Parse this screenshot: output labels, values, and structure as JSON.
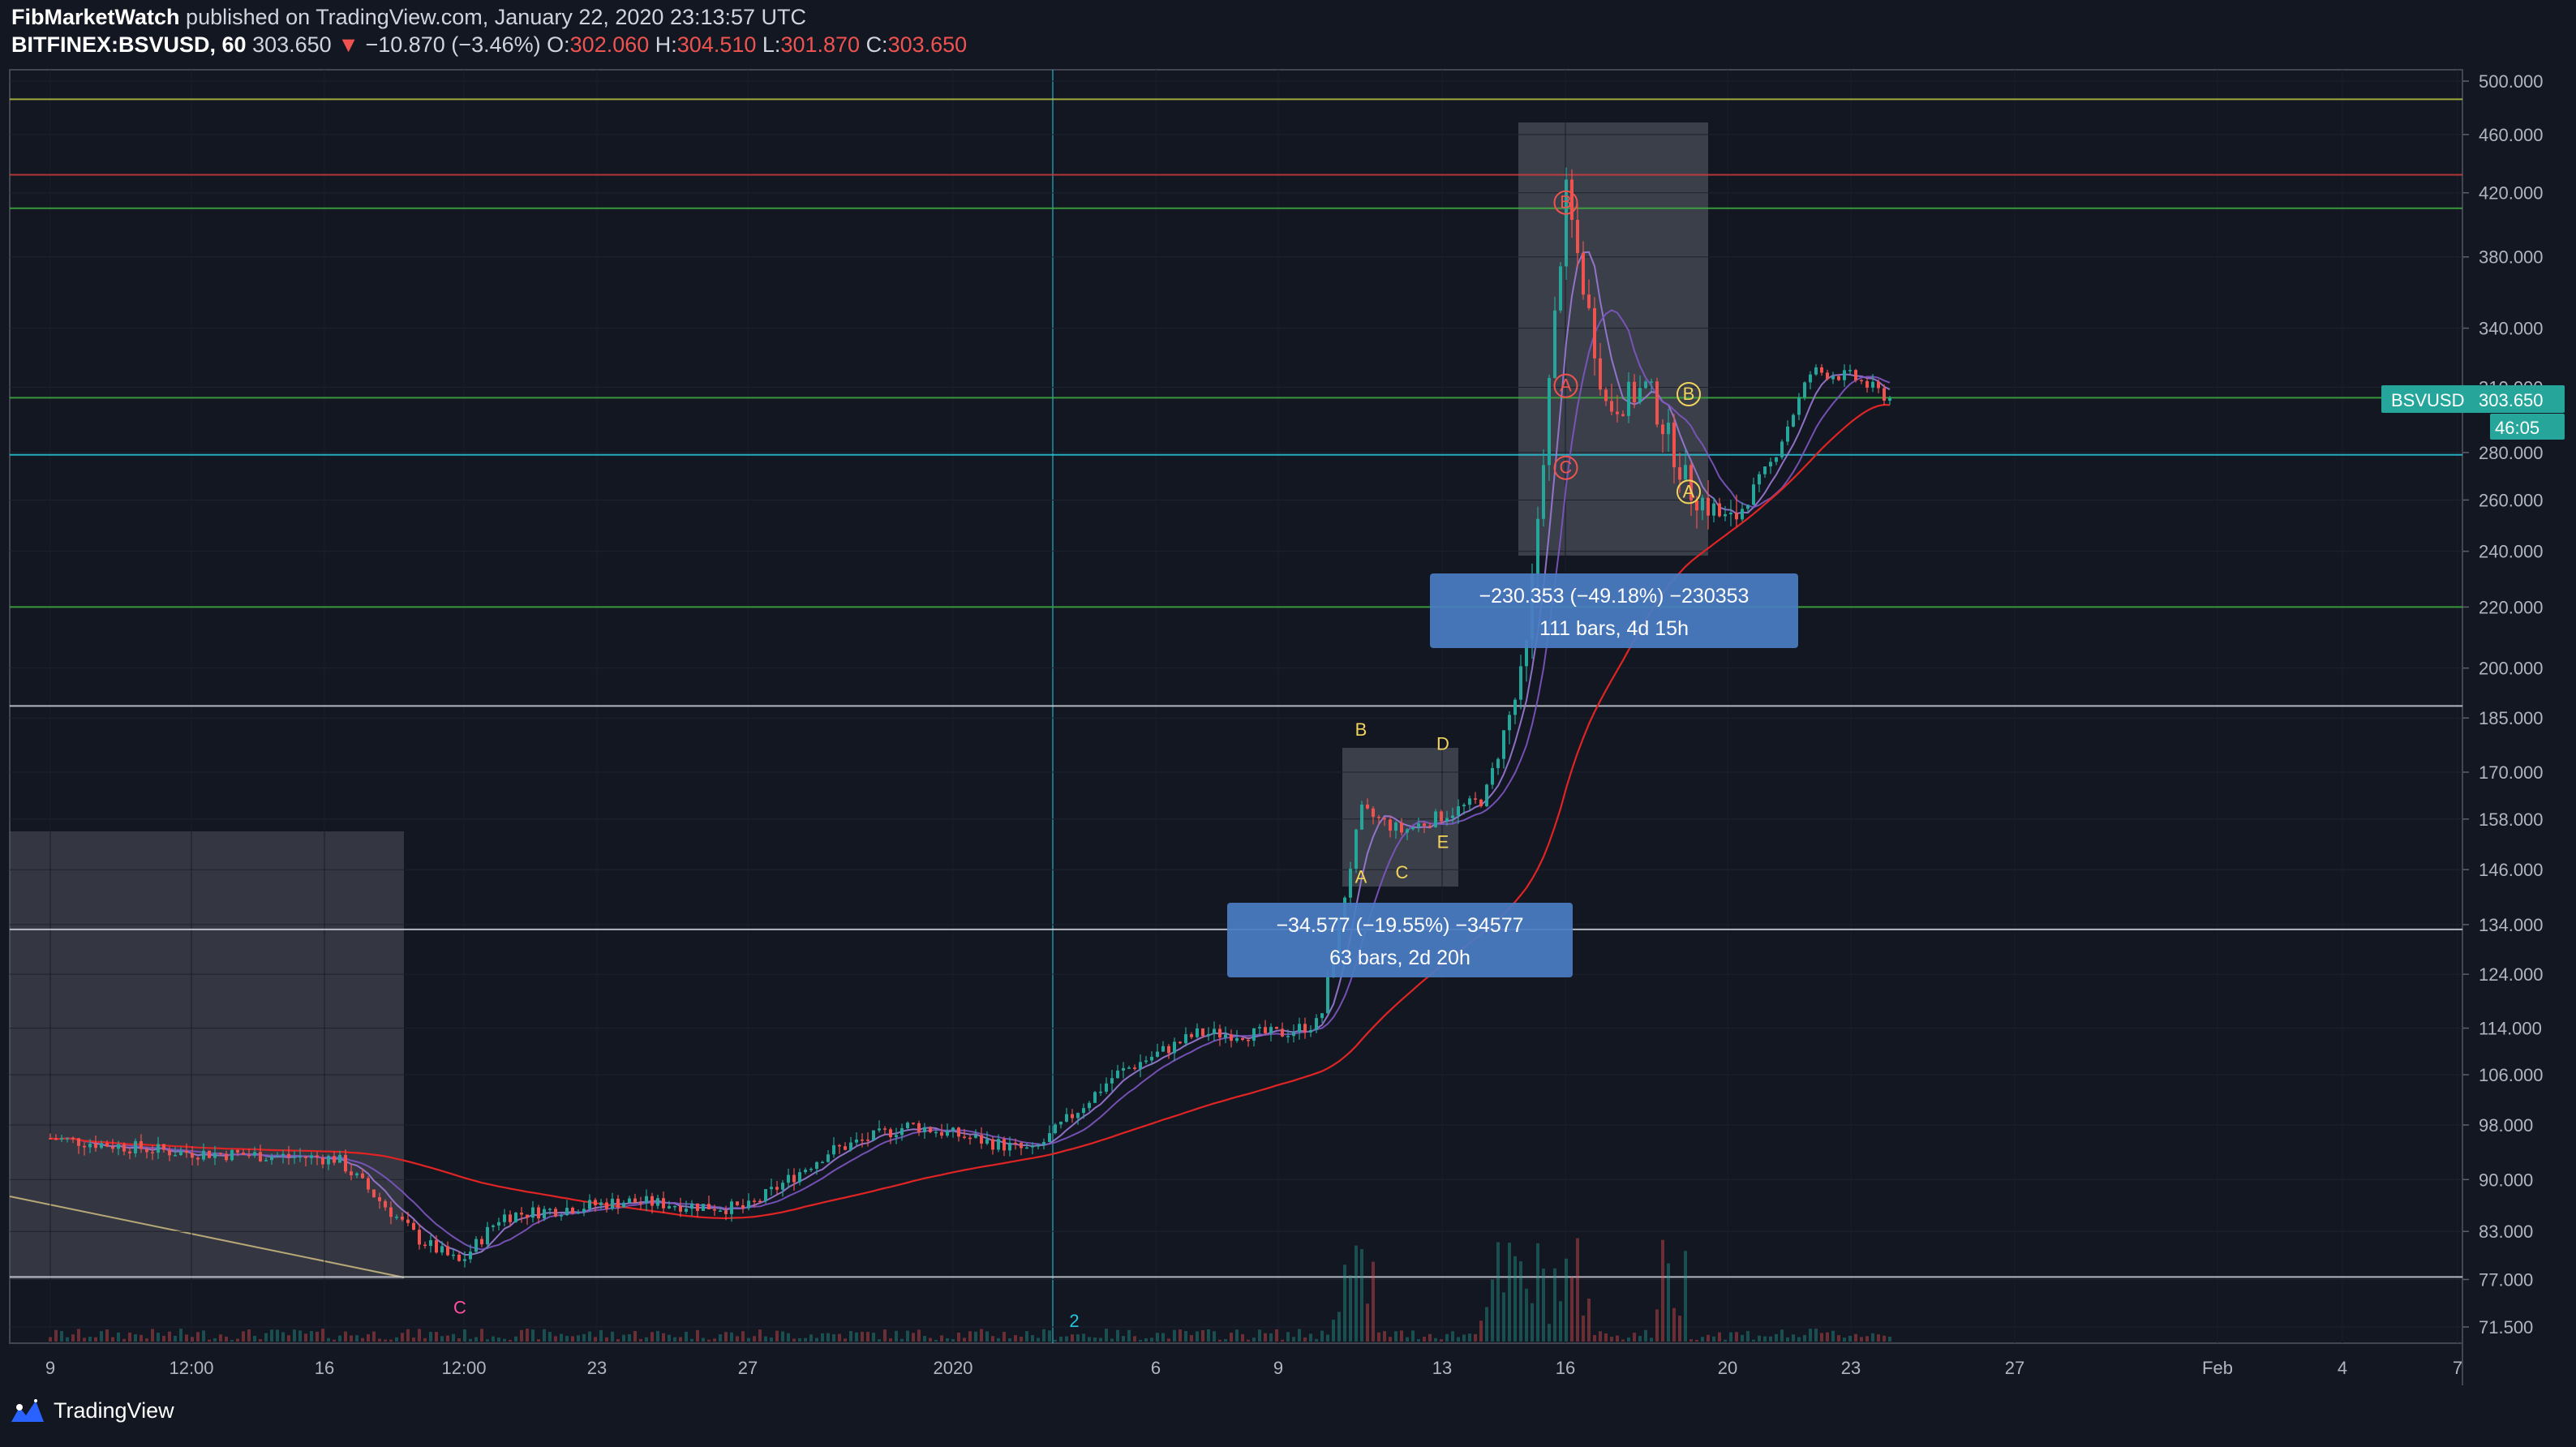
{
  "header": {
    "publisher": "FibMarketWatch",
    "published_text": "published on TradingView.com, January 22, 2020 23:13:57 UTC",
    "symbol": "BITFINEX:BSVUSD, 60",
    "last": "303.650",
    "change": "−10.870 (−3.46%)",
    "o_label": "O:",
    "o_value": "302.060",
    "h_label": "H:",
    "h_value": "304.510",
    "l_label": "L:",
    "l_value": "301.870",
    "c_label": "C:",
    "c_value": "303.650"
  },
  "price_tag": {
    "symbol": "BSVUSD",
    "price": "303.650",
    "countdown": "46:05"
  },
  "footer": {
    "brand": "TradingView"
  },
  "colors": {
    "background": "#131722",
    "up": "#26a69a",
    "down": "#ef5350",
    "ma200": "#e02424",
    "ma_fast": "#7e57c2",
    "measure_box": "#4a7dc4"
  },
  "chart_data": {
    "type": "candlestick",
    "y_scale": "log",
    "ylim": [
      69,
      510
    ],
    "y_ticks": [
      "500.000",
      "460.000",
      "420.000",
      "380.000",
      "340.000",
      "310.000",
      "280.000",
      "260.000",
      "240.000",
      "220.000",
      "200.000",
      "185.000",
      "170.000",
      "158.000",
      "146.000",
      "134.000",
      "124.000",
      "114.000",
      "106.000",
      "98.000",
      "90.000",
      "83.000",
      "77.000",
      "71.500"
    ],
    "x_ticks": [
      "9",
      "12:00",
      "16",
      "12:00",
      "23",
      "27",
      "2020",
      "6",
      "9",
      "13",
      "16",
      "20",
      "23",
      "27",
      "Feb",
      "4",
      "7"
    ],
    "horizontal_levels": [
      {
        "price": 486,
        "color": "#b8c244"
      },
      {
        "price": 432,
        "color": "#d23c3c"
      },
      {
        "price": 410,
        "color": "#3fae3f"
      },
      {
        "price": 305,
        "color": "#3fae3f"
      },
      {
        "price": 279,
        "color": "#26c6da"
      },
      {
        "price": 220,
        "color": "#3fae3f"
      },
      {
        "price": 188.5,
        "color": "#d1d4dc"
      },
      {
        "price": 133,
        "color": "#d1d4dc"
      },
      {
        "price": 77.3,
        "color": "#d1d4dc"
      }
    ],
    "price_path": [
      [
        "Dec 9",
        96
      ],
      [
        "Dec 12",
        94
      ],
      [
        "Dec 16",
        93
      ],
      [
        "Dec 18",
        82
      ],
      [
        "Dec 19",
        79
      ],
      [
        "Dec 20",
        85
      ],
      [
        "Dec 23",
        87
      ],
      [
        "Dec 26",
        86
      ],
      [
        "Dec 28",
        94
      ],
      [
        "Dec 30",
        98
      ],
      [
        "Jan 2",
        94
      ],
      [
        "Jan 4",
        106
      ],
      [
        "Jan 6",
        113
      ],
      [
        "Jan 8",
        113
      ],
      [
        "Jan 9",
        115
      ],
      [
        "Jan 10",
        160
      ],
      [
        "Jan 11",
        155
      ],
      [
        "Jan 13",
        163
      ],
      [
        "Jan 14",
        200
      ],
      [
        "Jan 15",
        420
      ],
      [
        "Jan 16",
        300
      ],
      [
        "Jan 17",
        310
      ],
      [
        "Jan 18",
        265
      ],
      [
        "Jan 19",
        250
      ],
      [
        "Jan 20",
        275
      ],
      [
        "Jan 21",
        318
      ],
      [
        "Jan 22",
        315
      ],
      [
        "Jan 23",
        303.65
      ]
    ],
    "wave_labels": [
      {
        "text": "C",
        "date": "Dec 19",
        "price": 73,
        "color": "#ff4fa3"
      },
      {
        "text": "2",
        "date": "Jan 3",
        "price": 71.5,
        "color": "#26c6da"
      },
      {
        "text": "A",
        "date": "Jan 10",
        "price": 143,
        "color": "#f2d45c"
      },
      {
        "text": "B",
        "date": "Jan 10",
        "price": 180,
        "color": "#f2d45c"
      },
      {
        "text": "C",
        "date": "Jan 11",
        "price": 144,
        "color": "#f2d45c"
      },
      {
        "text": "D",
        "date": "Jan 12",
        "price": 176,
        "color": "#f2d45c"
      },
      {
        "text": "E",
        "date": "Jan 12",
        "price": 151,
        "color": "#f2d45c"
      },
      {
        "text": "B",
        "date": "Jan 15",
        "price": 410,
        "color": "#ef5350",
        "circled": true
      },
      {
        "text": "A",
        "date": "Jan 15",
        "price": 308,
        "color": "#ef5350",
        "circled": true
      },
      {
        "text": "C",
        "date": "Jan 15",
        "price": 271,
        "color": "#ef5350",
        "circled": true
      },
      {
        "text": "B",
        "date": "Jan 18",
        "price": 304,
        "color": "#f2d45c",
        "circled": true
      },
      {
        "text": "A",
        "date": "Jan 18",
        "price": 261,
        "color": "#f2d45c",
        "circled": true
      }
    ],
    "measurements": [
      {
        "line1": "−230.353 (−49.18%) −230353",
        "line2": "111 bars, 4d 15h"
      },
      {
        "line1": "−34.577 (−19.55%) −34577",
        "line2": "63 bars, 2d 20h"
      }
    ]
  }
}
